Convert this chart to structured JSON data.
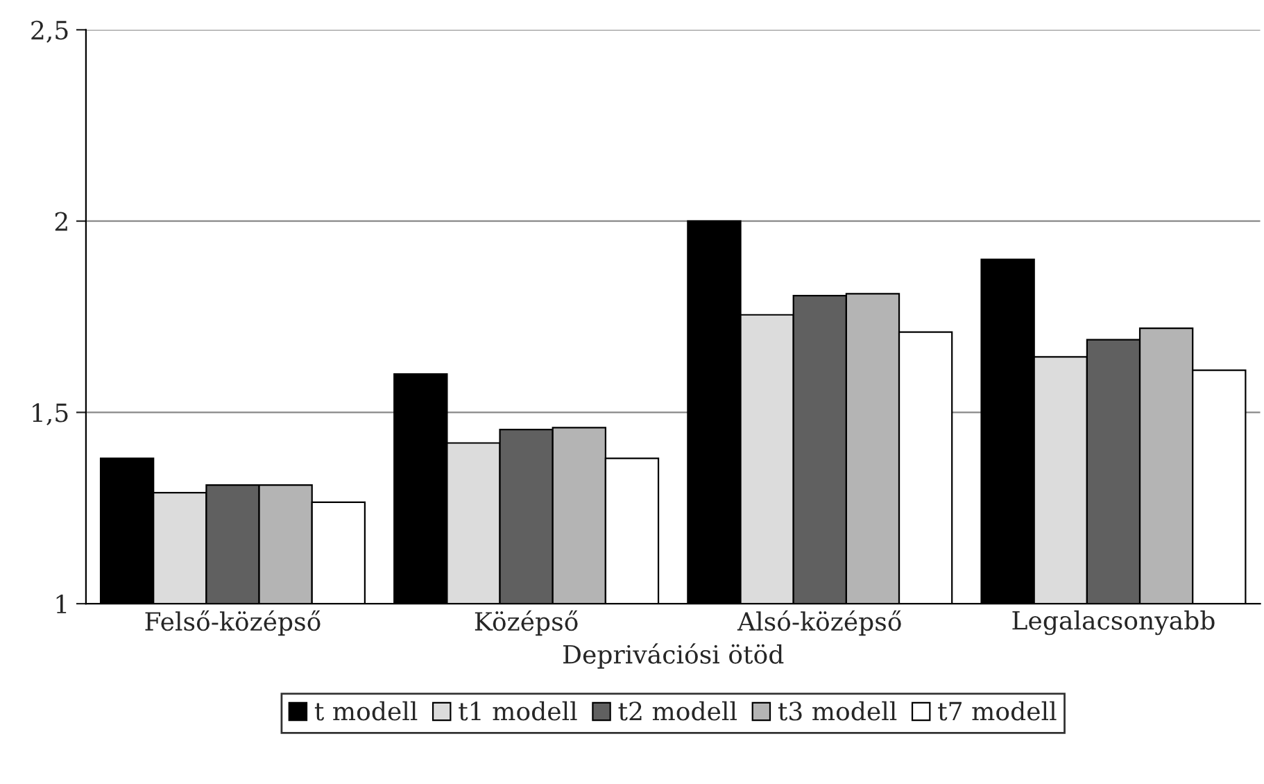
{
  "chart_data": {
    "type": "bar",
    "xlabel": "Deprivációsi ötöd",
    "categories": [
      "Felső-középső",
      "Középső",
      "Alsó-középső",
      "Legalacsonyabb"
    ],
    "series": [
      {
        "name": "t modell",
        "color": "#000000",
        "values": [
          1.38,
          1.6,
          2.0,
          1.9
        ]
      },
      {
        "name": "t1 modell",
        "color": "#dcdcdc",
        "values": [
          1.29,
          1.42,
          1.755,
          1.645
        ]
      },
      {
        "name": "t2 modell",
        "color": "#606060",
        "values": [
          1.31,
          1.455,
          1.805,
          1.69
        ]
      },
      {
        "name": "t3 modell",
        "color": "#b4b4b4",
        "values": [
          1.31,
          1.46,
          1.81,
          1.72
        ]
      },
      {
        "name": "t7 modell",
        "color": "#ffffff",
        "values": [
          1.265,
          1.38,
          1.71,
          1.61
        ]
      }
    ],
    "ylim": [
      1,
      2.5
    ],
    "yticks": [
      1,
      {
        "value": 1.5,
        "label": "1,5"
      },
      2,
      {
        "value": 2.5,
        "label": "2,5"
      }
    ],
    "grid": "y",
    "legend": "bottom"
  }
}
